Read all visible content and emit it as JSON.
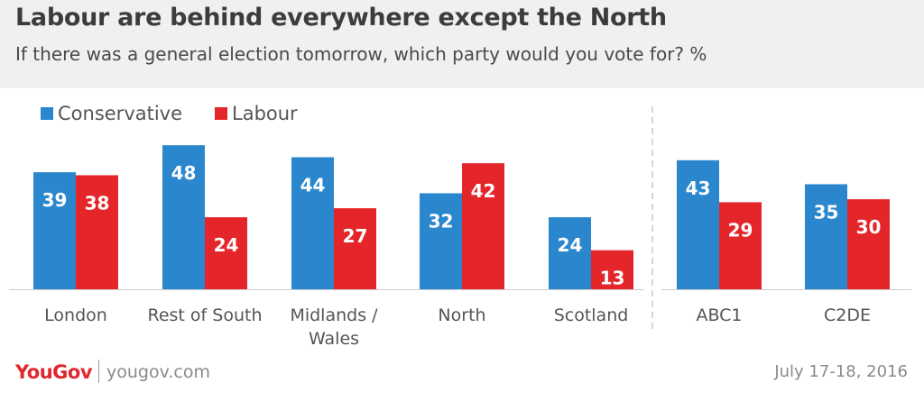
{
  "header": {
    "title": "Labour are behind everywhere except the North",
    "subtitle": "If there was a general election tomorrow, which party would you vote for? %"
  },
  "footer": {
    "brand": "YouGov",
    "site": "yougov.com",
    "date": "July 17-18, 2016"
  },
  "colors": {
    "conservative": "#2b87cd",
    "labour": "#e4262a"
  },
  "chart_data": {
    "type": "bar",
    "title": "Labour are behind everywhere except the North",
    "subtitle": "If there was a general election tomorrow, which party would you vote for? %",
    "categories": [
      "London",
      "Rest of South",
      "Midlands / Wales",
      "North",
      "Scotland",
      "ABC1",
      "C2DE"
    ],
    "series": [
      {
        "name": "Conservative",
        "color": "#2b87cd",
        "values": [
          39,
          48,
          44,
          32,
          24,
          43,
          35
        ]
      },
      {
        "name": "Labour",
        "color": "#e4262a",
        "values": [
          38,
          24,
          27,
          42,
          13,
          29,
          30
        ]
      }
    ],
    "ylim": [
      0,
      50
    ],
    "legend_position": "top-left",
    "grid": false,
    "data_labels": true,
    "group_divider_after": "Scotland"
  }
}
